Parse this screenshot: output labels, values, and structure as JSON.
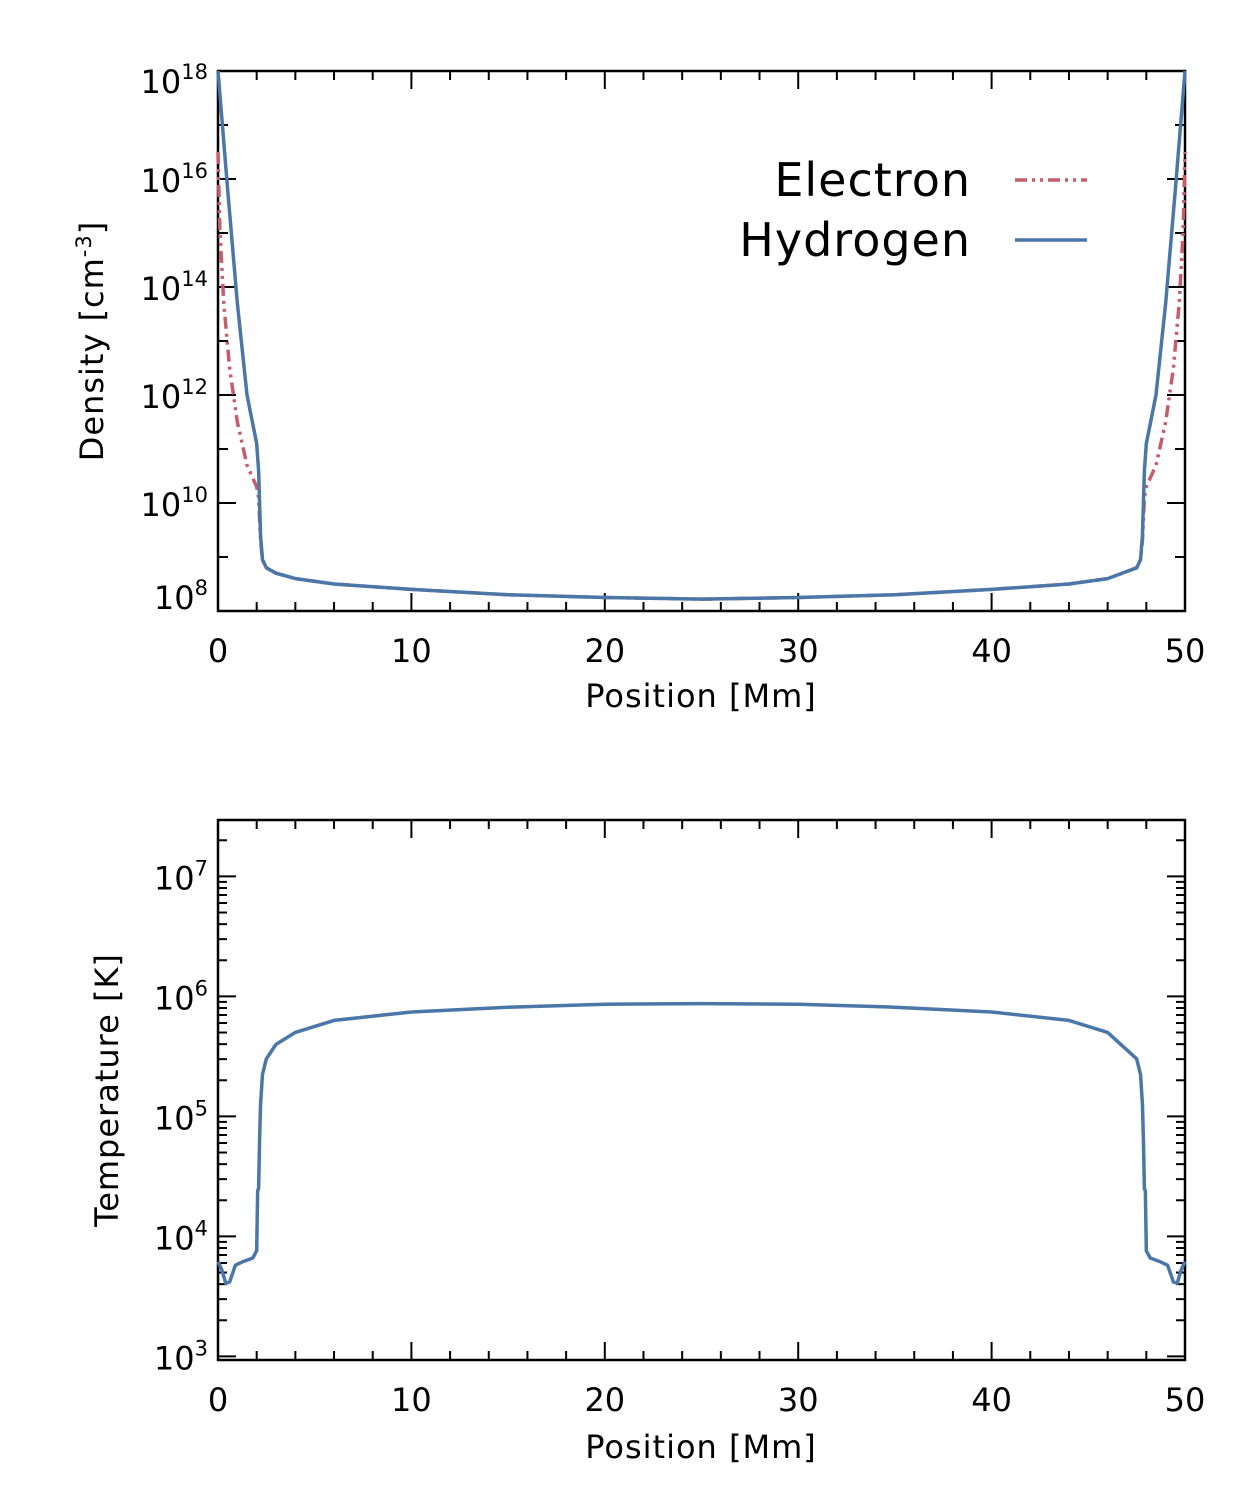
{
  "colors": {
    "hydrogen": "#4a76a8",
    "electron": "#c65c6c"
  },
  "chart_data": [
    {
      "type": "line",
      "ylabel": "Density [cm",
      "ylabel_sup": "-3",
      "ylabel_close": "]",
      "xlabel": "Position [Mm]",
      "xlim": [
        0,
        50
      ],
      "ylog_lim": [
        8,
        18
      ],
      "xticks": [
        "0",
        "10",
        "20",
        "30",
        "40",
        "50"
      ],
      "yticks": [
        {
          "base": "10",
          "exp": "8",
          "logv": 8
        },
        {
          "base": "10",
          "exp": "10",
          "logv": 10
        },
        {
          "base": "10",
          "exp": "12",
          "logv": 12
        },
        {
          "base": "10",
          "exp": "14",
          "logv": 14
        },
        {
          "base": "10",
          "exp": "16",
          "logv": 16
        },
        {
          "base": "10",
          "exp": "18",
          "logv": 18
        }
      ],
      "legend_position": "top-right",
      "series": [
        {
          "name": "Electron",
          "style": "dash-dot-dot",
          "log10_x": [
            0,
            0.1,
            0.3,
            0.6,
            1.0,
            1.5,
            2.0,
            2.1,
            2.15,
            2.2,
            2.3,
            2.5,
            3,
            4,
            6,
            10,
            15,
            20,
            25,
            30,
            35,
            40,
            44,
            46,
            47.5,
            47.7,
            47.8,
            47.85,
            47.9,
            48.0,
            48.5,
            49.0,
            49.4,
            49.7,
            49.9,
            50
          ],
          "log10_y": [
            16.5,
            15.0,
            13.7,
            12.5,
            11.5,
            10.7,
            10.3,
            10.1,
            9.7,
            9.3,
            8.95,
            8.8,
            8.7,
            8.6,
            8.5,
            8.4,
            8.3,
            8.25,
            8.22,
            8.25,
            8.3,
            8.4,
            8.5,
            8.6,
            8.8,
            8.95,
            9.3,
            9.7,
            10.1,
            10.3,
            10.7,
            11.5,
            12.5,
            13.7,
            15.0,
            16.5
          ]
        },
        {
          "name": "Hydrogen",
          "style": "solid",
          "log10_x": [
            0,
            0.5,
            1.0,
            1.5,
            2.0,
            2.1,
            2.15,
            2.2,
            2.3,
            2.5,
            3,
            4,
            6,
            10,
            15,
            20,
            25,
            30,
            35,
            40,
            44,
            46,
            47.5,
            47.7,
            47.8,
            47.85,
            47.9,
            48.0,
            48.5,
            49.0,
            49.5,
            50
          ],
          "log10_y": [
            18.0,
            15.8,
            13.7,
            12.0,
            11.1,
            10.6,
            10.0,
            9.4,
            8.95,
            8.8,
            8.7,
            8.6,
            8.5,
            8.4,
            8.3,
            8.25,
            8.22,
            8.25,
            8.3,
            8.4,
            8.5,
            8.6,
            8.8,
            8.95,
            9.4,
            10.0,
            10.6,
            11.1,
            12.0,
            13.7,
            15.8,
            18.0
          ]
        }
      ]
    },
    {
      "type": "line",
      "ylabel": "Temperature [K]",
      "xlabel": "Position [Mm]",
      "xlim": [
        0,
        50
      ],
      "ylog_lim": [
        2.97,
        7.47
      ],
      "xticks": [
        "0",
        "10",
        "20",
        "30",
        "40",
        "50"
      ],
      "yticks": [
        {
          "base": "10",
          "exp": "3",
          "logv": 3
        },
        {
          "base": "10",
          "exp": "4",
          "logv": 4
        },
        {
          "base": "10",
          "exp": "5",
          "logv": 5
        },
        {
          "base": "10",
          "exp": "6",
          "logv": 6
        },
        {
          "base": "10",
          "exp": "7",
          "logv": 7
        }
      ],
      "series": [
        {
          "name": "Temperature",
          "style": "solid",
          "log10_x": [
            0,
            0.2,
            0.4,
            0.6,
            0.9,
            1.3,
            1.8,
            2.0,
            2.05,
            2.1,
            2.15,
            2.2,
            2.3,
            2.5,
            3,
            4,
            6,
            10,
            15,
            20,
            25,
            30,
            35,
            40,
            44,
            46,
            47.5,
            47.7,
            47.8,
            47.85,
            47.9,
            47.95,
            48.0,
            48.2,
            48.7,
            49.1,
            49.4,
            49.6,
            49.8,
            50
          ],
          "log10_y": [
            3.79,
            3.72,
            3.61,
            3.62,
            3.76,
            3.79,
            3.82,
            3.88,
            4.38,
            4.4,
            4.8,
            5.1,
            5.35,
            5.48,
            5.6,
            5.7,
            5.8,
            5.87,
            5.91,
            5.935,
            5.94,
            5.935,
            5.91,
            5.87,
            5.8,
            5.7,
            5.48,
            5.35,
            5.1,
            4.8,
            4.4,
            4.38,
            3.88,
            3.82,
            3.79,
            3.76,
            3.62,
            3.61,
            3.72,
            3.79
          ]
        }
      ]
    }
  ]
}
